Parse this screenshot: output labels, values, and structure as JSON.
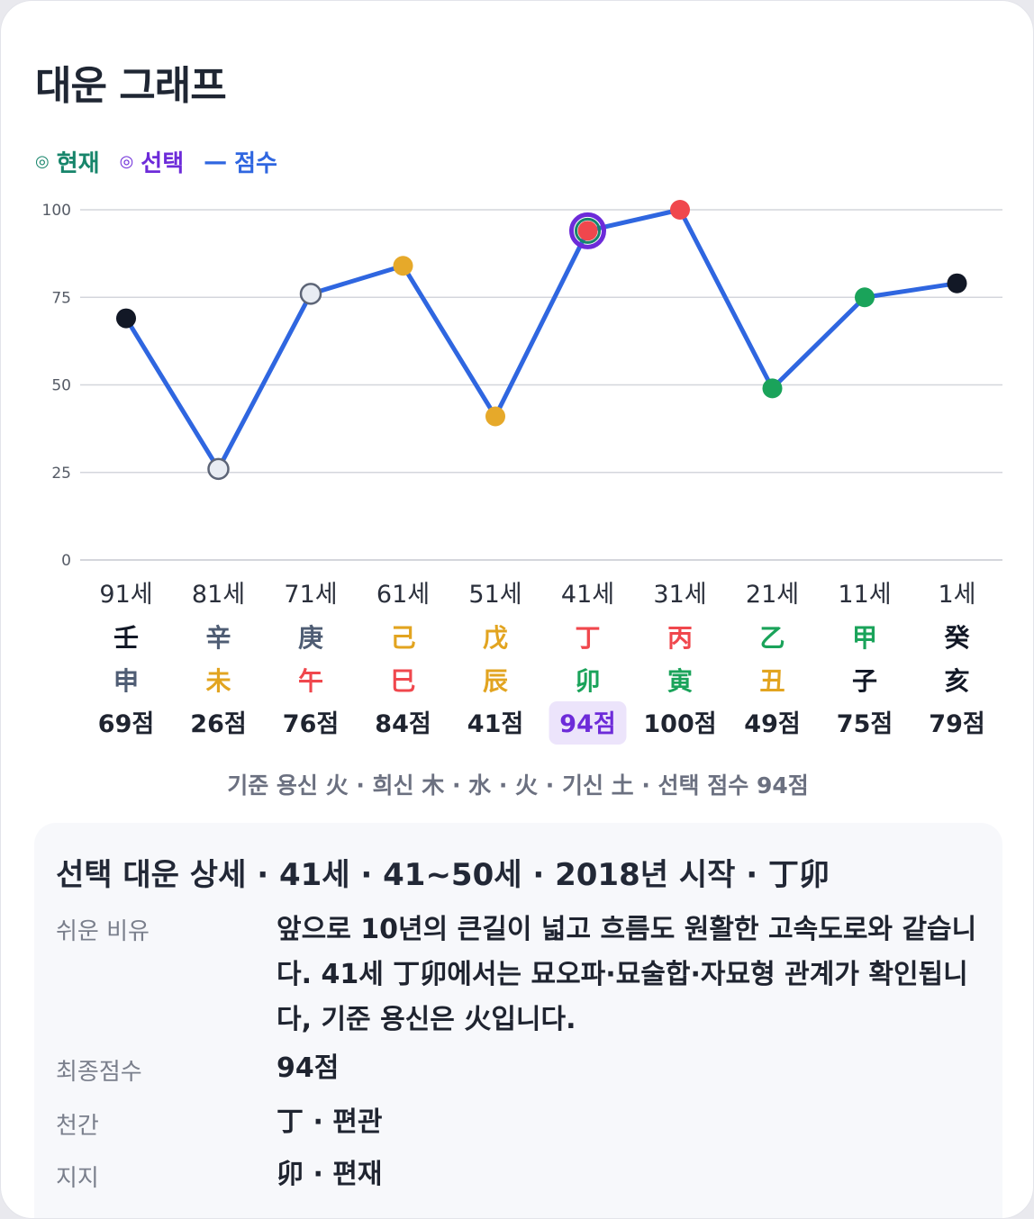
{
  "title": "대운 그래프",
  "legend": [
    {
      "label": "현재",
      "symbol": "◎",
      "color": "#17856b"
    },
    {
      "label": "선택",
      "symbol": "◎",
      "color": "#6d2bd9"
    },
    {
      "label": "점수",
      "symbol": "—",
      "color": "#2f66e0"
    }
  ],
  "chart_data": {
    "type": "line",
    "x": [
      "91세",
      "81세",
      "71세",
      "61세",
      "51세",
      "41세",
      "31세",
      "21세",
      "11세",
      "1세"
    ],
    "values": [
      69,
      26,
      76,
      84,
      41,
      94,
      100,
      49,
      75,
      79
    ],
    "ylim": [
      0,
      100
    ],
    "yticks": [
      "0",
      "25",
      "50",
      "75",
      "100"
    ],
    "grid": true,
    "line_color": "#2f66e0",
    "point_colors": [
      "#121826",
      "#e8ecf3",
      "#e8ecf3",
      "#e6a92a",
      "#e6a92a",
      "#f0474d",
      "#f0474d",
      "#1aa35a",
      "#1aa35a",
      "#121826"
    ],
    "selected_index": 5,
    "current_index": 5,
    "stems": [
      {
        "char": "壬",
        "color": "#121826"
      },
      {
        "char": "辛",
        "color": "#4f5d74"
      },
      {
        "char": "庚",
        "color": "#4f5d74"
      },
      {
        "char": "己",
        "color": "#e2a420"
      },
      {
        "char": "戊",
        "color": "#e2a420"
      },
      {
        "char": "丁",
        "color": "#f0474d"
      },
      {
        "char": "丙",
        "color": "#f0474d"
      },
      {
        "char": "乙",
        "color": "#1aa35a"
      },
      {
        "char": "甲",
        "color": "#1aa35a"
      },
      {
        "char": "癸",
        "color": "#121826"
      }
    ],
    "branches": [
      {
        "char": "申",
        "color": "#4f5d74"
      },
      {
        "char": "未",
        "color": "#e2a420"
      },
      {
        "char": "午",
        "color": "#f0474d"
      },
      {
        "char": "巳",
        "color": "#f0474d"
      },
      {
        "char": "辰",
        "color": "#e2a420"
      },
      {
        "char": "卯",
        "color": "#1aa35a"
      },
      {
        "char": "寅",
        "color": "#1aa35a"
      },
      {
        "char": "丑",
        "color": "#e2a420"
      },
      {
        "char": "子",
        "color": "#121826"
      },
      {
        "char": "亥",
        "color": "#121826"
      }
    ],
    "score_labels": [
      "69점",
      "26점",
      "76점",
      "84점",
      "41점",
      "94점",
      "100점",
      "49점",
      "75점",
      "79점"
    ]
  },
  "footnote": "기준 용신 火 · 희신 木 · 水 · 火 · 기신 土 · 선택 점수 94점",
  "detail": {
    "heading": "선택 대운 상세 · 41세 · 41~50세 · 2018년 시작 · 丁卯",
    "rows": [
      {
        "key": "쉬운 비유",
        "value": "앞으로 10년의 큰길이 넓고 흐름도 원활한 고속도로와 같습니다. 41세 丁卯에서는 묘오파·묘술합·자묘형 관계가 확인됩니다, 기준 용신은 火입니다."
      },
      {
        "key": "최종점수",
        "value": "94점"
      },
      {
        "key": "천간",
        "value": "丁 · 편관"
      },
      {
        "key": "지지",
        "value": "卯 · 편재"
      }
    ]
  },
  "colors": {
    "selected_bg": "#ece4fb",
    "selected_text": "#6d2bd9",
    "grid": "#d4d6dc"
  }
}
